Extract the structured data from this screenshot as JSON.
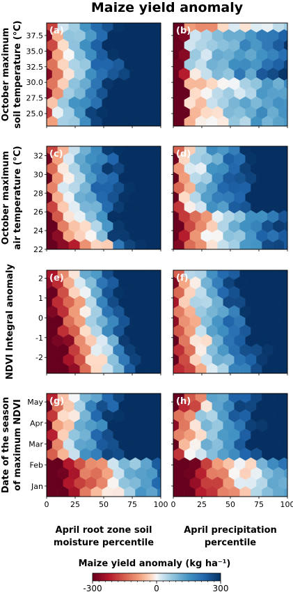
{
  "chart_data": {
    "type": "heatmap",
    "title": "Maize yield anomaly",
    "colorbar": {
      "title": "Maize yield anomaly (kg ha⁻¹)",
      "ticks": [
        "-300",
        "0",
        "300"
      ],
      "range": [
        -300,
        300
      ]
    },
    "x_axes": [
      {
        "label_lines": [
          "April root zone soil",
          "moisture percentile"
        ],
        "ticks": [
          "0",
          "25",
          "50",
          "75",
          "100"
        ],
        "range": [
          0,
          100
        ]
      },
      {
        "label_lines": [
          "April precipitation",
          "percentile"
        ],
        "ticks": [
          "0",
          "25",
          "50",
          "75",
          "100"
        ],
        "range": [
          0,
          100
        ]
      }
    ],
    "rows": [
      {
        "ylabel_lines": [
          "October maximum",
          "soil temperature (°C)"
        ],
        "ticks": [
          "25.0",
          "27.5",
          "30.0",
          "32.5",
          "35.0",
          "37.5"
        ],
        "ylim": [
          23,
          39.5
        ],
        "panels": [
          {
            "tag": "(a)"
          },
          {
            "tag": "(b)"
          }
        ]
      },
      {
        "ylabel_lines": [
          "October maximum",
          "air temperature (°C)"
        ],
        "ticks": [
          "22",
          "24",
          "26",
          "28",
          "30",
          "32"
        ],
        "ylim": [
          22,
          33
        ],
        "panels": [
          {
            "tag": "(c)"
          },
          {
            "tag": "(d)"
          }
        ]
      },
      {
        "ylabel_lines": [
          "NDVI Integral anomaly"
        ],
        "ticks": [
          "-2",
          "-1",
          "0",
          "1",
          "2"
        ],
        "ylim": [
          -2.8,
          2.4
        ],
        "panels": [
          {
            "tag": "(e)"
          },
          {
            "tag": "(f)"
          }
        ]
      },
      {
        "ylabel_lines": [
          "Date of the season",
          "of maximum NDVI"
        ],
        "ticks": [
          "Jan",
          "Feb",
          "Mar",
          "Apr",
          "May"
        ],
        "ylim": [
          0.5,
          5.4
        ],
        "panels": [
          {
            "tag": "(g)"
          },
          {
            "tag": "(h)"
          }
        ]
      }
    ],
    "colors": {
      "negative": "#67001f",
      "mid_negative": "#d6604d",
      "zero": "#f7f7f7",
      "mid_positive": "#4393c3",
      "positive": "#053061"
    }
  }
}
